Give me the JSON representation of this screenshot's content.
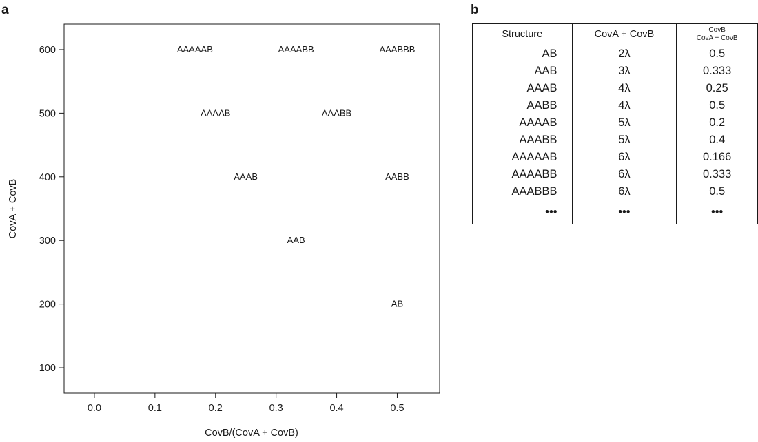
{
  "panels": {
    "a": "a",
    "b": "b"
  },
  "chart_data": {
    "type": "scatter",
    "marker": "text-label",
    "xlabel": "CovB/(CovA + CovB)",
    "ylabel": "CovA + CovB",
    "xlim": [
      -0.05,
      0.57
    ],
    "ylim": [
      60,
      640
    ],
    "xticks": [
      0.0,
      0.1,
      0.2,
      0.3,
      0.4,
      0.5
    ],
    "xtick_labels": [
      "0.0",
      "0.1",
      "0.2",
      "0.3",
      "0.4",
      "0.5"
    ],
    "yticks": [
      100,
      200,
      300,
      400,
      500,
      600
    ],
    "ytick_labels": [
      "100",
      "200",
      "300",
      "400",
      "500",
      "600"
    ],
    "grid": false,
    "points": [
      {
        "label": "AB",
        "x": 0.5,
        "y": 200
      },
      {
        "label": "AAB",
        "x": 0.333,
        "y": 300
      },
      {
        "label": "AAAB",
        "x": 0.25,
        "y": 400
      },
      {
        "label": "AABB",
        "x": 0.5,
        "y": 400
      },
      {
        "label": "AAAAB",
        "x": 0.2,
        "y": 500
      },
      {
        "label": "AAABB",
        "x": 0.4,
        "y": 500
      },
      {
        "label": "AAAAAB",
        "x": 0.166,
        "y": 600
      },
      {
        "label": "AAAABB",
        "x": 0.333,
        "y": 600
      },
      {
        "label": "AAABBB",
        "x": 0.5,
        "y": 600
      }
    ]
  },
  "table": {
    "headers": {
      "structure": "Structure",
      "sum": "CovA + CovB",
      "ratio_num": "CovB",
      "ratio_den": "CovA + CovB"
    },
    "rows": [
      [
        "AB",
        "2λ",
        "0.5"
      ],
      [
        "AAB",
        "3λ",
        "0.333"
      ],
      [
        "AAAB",
        "4λ",
        "0.25"
      ],
      [
        "AABB",
        "4λ",
        "0.5"
      ],
      [
        "AAAAB",
        "5λ",
        "0.2"
      ],
      [
        "AAABB",
        "5λ",
        "0.4"
      ],
      [
        "AAAAAB",
        "6λ",
        "0.166"
      ],
      [
        "AAAABB",
        "6λ",
        "0.333"
      ],
      [
        "AAABBB",
        "6λ",
        "0.5"
      ],
      [
        "•••",
        "•••",
        "•••"
      ]
    ]
  }
}
